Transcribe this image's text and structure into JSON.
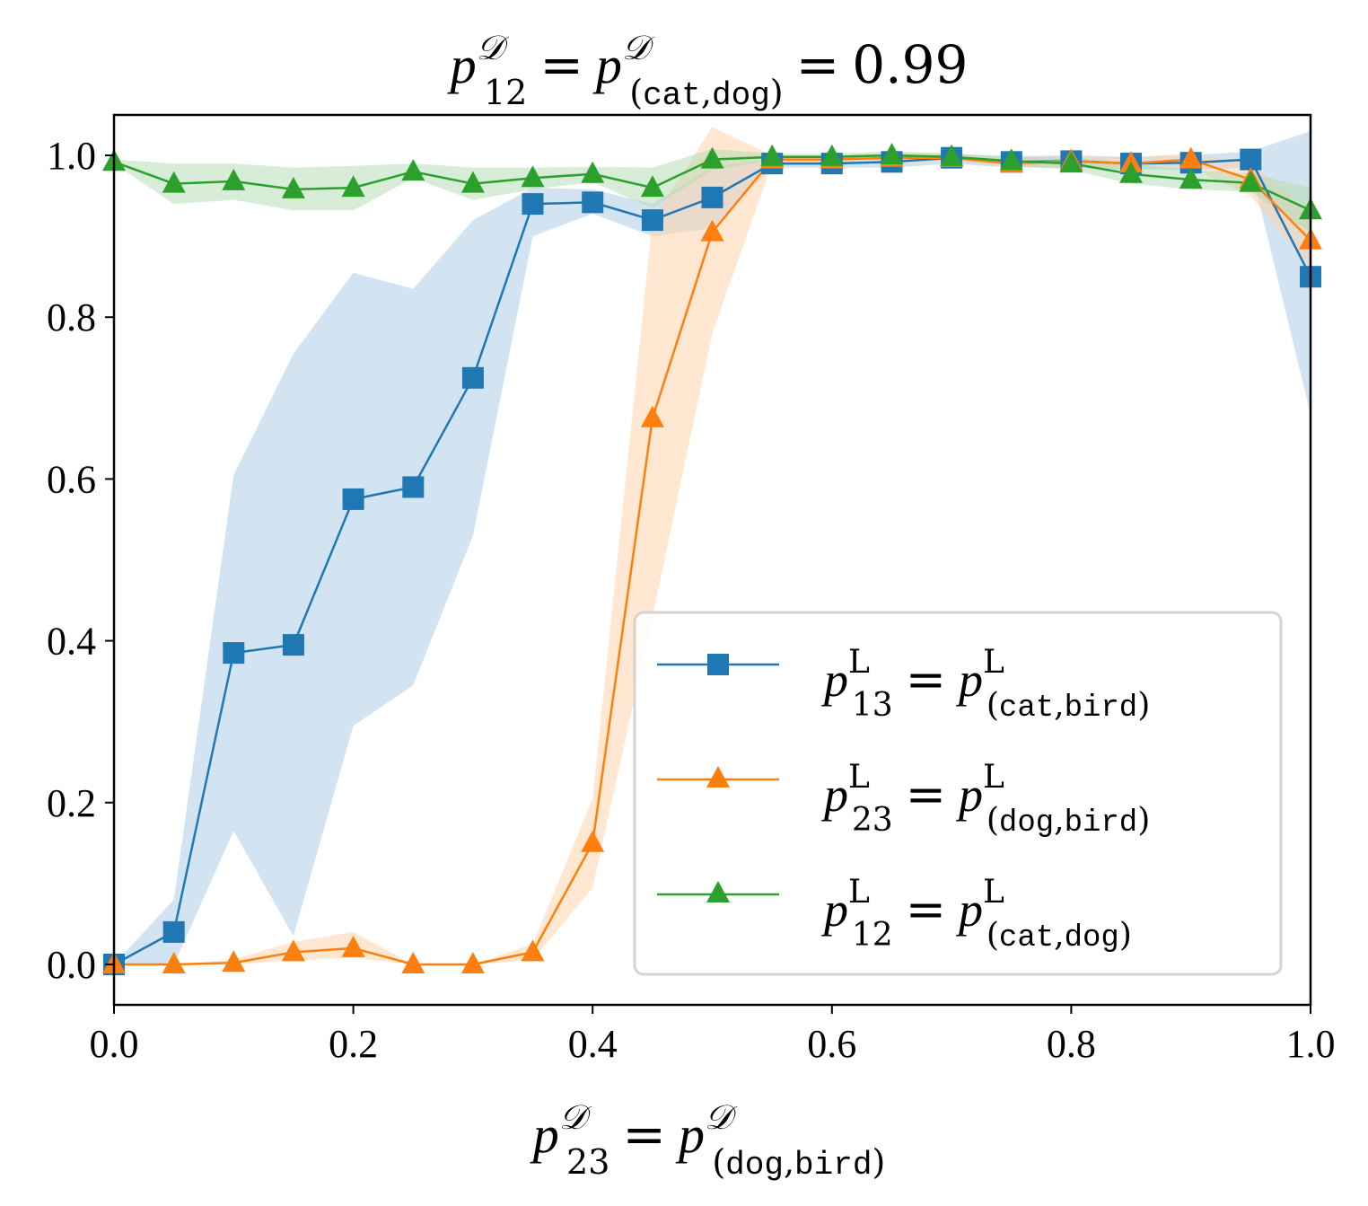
{
  "chart_data": {
    "type": "line",
    "title": {
      "base": "p",
      "sup": "𝒟",
      "sub_index": "12",
      "sub_pair_open": "(",
      "sub_pair_a": "cat",
      "sub_pair_sep": ",",
      "sub_pair_b": "dog",
      "sub_pair_close": ")",
      "equals": "=",
      "value_text": "0.99"
    },
    "xlabel": {
      "base": "p",
      "sup": "𝒟",
      "sub_index": "23",
      "sub_pair_open": "(",
      "sub_pair_a": "dog",
      "sub_pair_sep": ",",
      "sub_pair_b": "bird",
      "sub_pair_close": ")",
      "equals": "="
    },
    "ylabel": "",
    "xlim": [
      0.0,
      1.0
    ],
    "ylim": [
      -0.05,
      1.05
    ],
    "xticks": [
      0.0,
      0.2,
      0.4,
      0.6,
      0.8,
      1.0
    ],
    "xtick_labels": [
      "0.0",
      "0.2",
      "0.4",
      "0.6",
      "0.8",
      "1.0"
    ],
    "yticks": [
      0.0,
      0.2,
      0.4,
      0.6,
      0.8,
      1.0
    ],
    "ytick_labels": [
      "0.0",
      "0.2",
      "0.4",
      "0.6",
      "0.8",
      "1.0"
    ],
    "grid": false,
    "legend_position": "lower-right",
    "x": [
      0.0,
      0.05,
      0.1,
      0.15,
      0.2,
      0.25,
      0.3,
      0.35,
      0.4,
      0.45,
      0.5,
      0.55,
      0.6,
      0.65,
      0.7,
      0.75,
      0.8,
      0.85,
      0.9,
      0.95,
      1.0
    ],
    "series": [
      {
        "name": "p13 = p(cat,bird)",
        "label": {
          "base": "p",
          "sup": "L",
          "sub_index": "13",
          "sub_pair_open": "(",
          "sub_pair_a": "cat",
          "sub_pair_sep": ",",
          "sub_pair_b": "bird",
          "sub_pair_close": ")",
          "equals": "="
        },
        "color": "#1f77b4",
        "band_color": "#a6c9e4",
        "marker": "square",
        "values": [
          0.0,
          0.04,
          0.385,
          0.395,
          0.575,
          0.59,
          0.725,
          0.94,
          0.942,
          0.92,
          0.948,
          0.99,
          0.99,
          0.992,
          0.997,
          0.992,
          0.993,
          0.99,
          0.991,
          0.995,
          0.85
        ],
        "lower": [
          0.0,
          0.0,
          0.165,
          0.035,
          0.295,
          0.345,
          0.53,
          0.9,
          0.928,
          0.9,
          0.91,
          0.985,
          0.985,
          0.985,
          0.99,
          0.985,
          0.985,
          0.982,
          0.982,
          0.985,
          0.68
        ],
        "upper": [
          0.0,
          0.08,
          0.605,
          0.755,
          0.855,
          0.835,
          0.92,
          0.96,
          0.958,
          0.94,
          0.986,
          0.995,
          0.995,
          0.998,
          1.002,
          0.999,
          1.0,
          0.998,
          1.0,
          1.005,
          1.03
        ]
      },
      {
        "name": "p23 = p(dog,bird)",
        "label": {
          "base": "p",
          "sup": "L",
          "sub_index": "23",
          "sub_pair_open": "(",
          "sub_pair_a": "dog",
          "sub_pair_sep": ",",
          "sub_pair_b": "bird",
          "sub_pair_close": ")",
          "equals": "="
        },
        "color": "#ff7f0e",
        "band_color": "#ffcfa5",
        "marker": "triangle",
        "values": [
          0.0,
          0.0,
          0.002,
          0.015,
          0.02,
          0.0,
          0.0,
          0.015,
          0.15,
          0.675,
          0.905,
          0.995,
          0.995,
          0.997,
          0.997,
          0.99,
          0.993,
          0.99,
          0.995,
          0.97,
          0.895
        ],
        "lower": [
          0.0,
          0.0,
          0.0,
          0.005,
          0.008,
          0.0,
          0.0,
          0.005,
          0.095,
          0.43,
          0.78,
          0.99,
          0.99,
          0.99,
          0.993,
          0.985,
          0.985,
          0.985,
          0.985,
          0.95,
          0.86
        ],
        "upper": [
          0.0,
          0.0,
          0.006,
          0.028,
          0.04,
          0.0,
          0.0,
          0.025,
          0.205,
          0.92,
          1.035,
          1.0,
          1.0,
          1.003,
          1.003,
          0.996,
          1.0,
          0.997,
          1.003,
          0.99,
          0.93
        ]
      },
      {
        "name": "p12 = p(cat,dog)",
        "label": {
          "base": "p",
          "sup": "L",
          "sub_index": "12",
          "sub_pair_open": "(",
          "sub_pair_a": "cat",
          "sub_pair_sep": ",",
          "sub_pair_b": "dog",
          "sub_pair_close": ")",
          "equals": "="
        },
        "color": "#2ca02c",
        "band_color": "#b0dcb0",
        "marker": "triangle",
        "values": [
          0.992,
          0.965,
          0.968,
          0.958,
          0.96,
          0.98,
          0.965,
          0.972,
          0.977,
          0.96,
          0.995,
          0.998,
          0.998,
          1.0,
          0.998,
          0.993,
          0.99,
          0.977,
          0.97,
          0.966,
          0.932
        ],
        "lower": [
          0.99,
          0.94,
          0.945,
          0.932,
          0.932,
          0.972,
          0.945,
          0.958,
          0.967,
          0.935,
          0.982,
          0.994,
          0.994,
          0.995,
          0.994,
          0.988,
          0.982,
          0.965,
          0.958,
          0.955,
          0.905
        ],
        "upper": [
          0.995,
          0.99,
          0.99,
          0.985,
          0.987,
          0.99,
          0.985,
          0.985,
          0.986,
          0.985,
          1.008,
          1.002,
          1.002,
          1.005,
          1.002,
          0.998,
          0.998,
          0.99,
          0.982,
          0.978,
          0.96
        ]
      }
    ]
  }
}
